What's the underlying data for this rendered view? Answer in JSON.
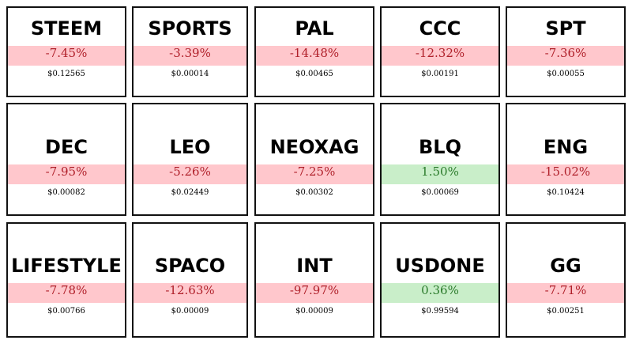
{
  "tiles": [
    {
      "symbol": "STEEM",
      "change": "-7.45%",
      "price": "$0.12565"
    },
    {
      "symbol": "SPORTS",
      "change": "-3.39%",
      "price": "$0.00014"
    },
    {
      "symbol": "PAL",
      "change": "-14.48%",
      "price": "$0.00465"
    },
    {
      "symbol": "CCC",
      "change": "-12.32%",
      "price": "$0.00191"
    },
    {
      "symbol": "SPT",
      "change": "-7.36%",
      "price": "$0.00055"
    },
    {
      "symbol": "DEC",
      "change": "-7.95%",
      "price": "$0.00082"
    },
    {
      "symbol": "LEO",
      "change": "-5.26%",
      "price": "$0.02449"
    },
    {
      "symbol": "NEOXAG",
      "change": "-7.25%",
      "price": "$0.00302"
    },
    {
      "symbol": "BLQ",
      "change": "1.50%",
      "price": "$0.00069"
    },
    {
      "symbol": "ENG",
      "change": "-15.02%",
      "price": "$0.10424"
    },
    {
      "symbol": "LIFESTYLE",
      "change": "-7.78%",
      "price": "$0.00766"
    },
    {
      "symbol": "SPACO",
      "change": "-12.63%",
      "price": "$0.00009"
    },
    {
      "symbol": "INT",
      "change": "-97.97%",
      "price": "$0.00009"
    },
    {
      "symbol": "USDONE",
      "change": "0.36%",
      "price": "$0.99594"
    },
    {
      "symbol": "GG",
      "change": "-7.71%",
      "price": "$0.00251"
    }
  ]
}
